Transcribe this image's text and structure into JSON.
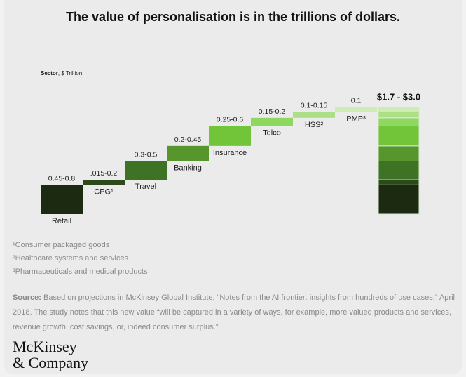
{
  "title": "The value of personalisation is in the trillions of dollars.",
  "sector_label": {
    "bold": "Sector",
    "rest": ", $ Trillion"
  },
  "chart_data": {
    "type": "waterfall",
    "title": "The value of personalisation is in the trillions of dollars.",
    "unit": "$ Trillion",
    "categories": [
      "Retail",
      "CPG¹",
      "Travel",
      "Banking",
      "Insurance",
      "Telco",
      "HSS²",
      "PMP³"
    ],
    "range_labels": [
      "0.45-0.8",
      ".015-0.2",
      "0.3-0.5",
      "0.2-0.45",
      "0.25-0.6",
      "0.15-0.2",
      "0.1-0.15",
      "0.1"
    ],
    "low": [
      0.45,
      0.015,
      0.3,
      0.2,
      0.25,
      0.15,
      0.1,
      0.1
    ],
    "high": [
      0.8,
      0.2,
      0.5,
      0.45,
      0.6,
      0.2,
      0.15,
      0.1
    ],
    "colors": [
      "#1c2a12",
      "#2d4a1a",
      "#3e7224",
      "#56962c",
      "#72c438",
      "#8fd860",
      "#addf88",
      "#cdebb3"
    ],
    "total": {
      "label": "$1.7 - $3.0",
      "low": 1.7,
      "high": 3.0
    }
  },
  "footnotes": [
    "¹Consumer packaged goods",
    "²Healthcare systems and services",
    "³Pharmaceuticals and medical products"
  ],
  "source": {
    "label": "Source:",
    "text": "Based on projections in McKinsey Global Institute, “Notes from the AI frontier: insights from hundreds of use cases,” April 2018. The study notes that this new value “will be captured in a variety of ways, for example, more valued products and services, revenue growth, cost savings, or, indeed consumer surplus.”"
  },
  "logo": {
    "line1": "McKinsey",
    "line2": "& Company"
  }
}
